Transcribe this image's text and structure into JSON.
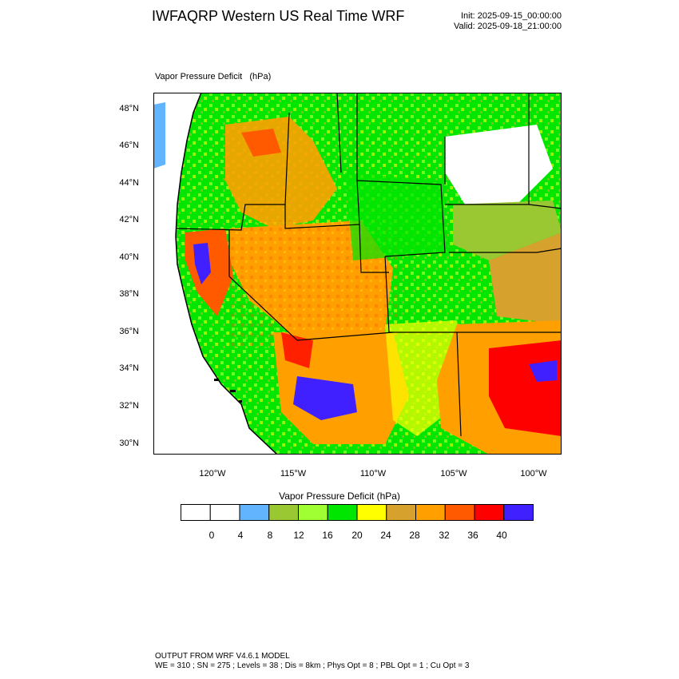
{
  "header": {
    "title": "IWFAQRP Western US Real Time WRF",
    "init": "Init: 2025-09-15_00:00:00",
    "valid": "Valid: 2025-09-18_21:00:00"
  },
  "plot": {
    "field_title": "Vapor Pressure Deficit   (hPa)",
    "lat_labels": [
      "48°N",
      "46°N",
      "44°N",
      "42°N",
      "40°N",
      "38°N",
      "36°N",
      "34°N",
      "32°N",
      "30°N"
    ],
    "lon_labels": [
      "120°W",
      "115°W",
      "110°W",
      "105°W",
      "100°W"
    ]
  },
  "colorbar": {
    "title": "Vapor Pressure Deficit  (hPa)",
    "labels": [
      "0",
      "4",
      "8",
      "12",
      "16",
      "20",
      "24",
      "28",
      "32",
      "36",
      "40"
    ],
    "colors": [
      "#ffffff",
      "#ffffff",
      "#63b4ff",
      "#9ac832",
      "#a0ff32",
      "#00e600",
      "#ffff00",
      "#d7a12d",
      "#ffa000",
      "#ff5a00",
      "#ff0000",
      "#4020ff"
    ]
  },
  "footer": {
    "line1": "OUTPUT FROM WRF V4.6.1 MODEL",
    "line2": "WE = 310 ; SN = 275 ; Levels = 38 ; Dis = 8km ; Phys Opt = 8 ; PBL Opt = 1 ; Cu Opt = 3"
  },
  "map": {
    "ocean_color": "#ffffff",
    "land_base_color": "#00e600",
    "regions": [
      {
        "name": "pacific-northwest-green",
        "color": "#00e600"
      },
      {
        "name": "idaho-orange",
        "color": "#d7a12d"
      },
      {
        "name": "nevada-orange",
        "color": "#ffa000"
      },
      {
        "name": "california-central-valley-purple",
        "color": "#4020ff"
      },
      {
        "name": "arizona-purple",
        "color": "#4020ff"
      },
      {
        "name": "texas-red",
        "color": "#ff0000"
      },
      {
        "name": "northern-plains-white",
        "color": "#ffffff"
      },
      {
        "name": "kansas-brown",
        "color": "#d7a12d"
      }
    ]
  }
}
